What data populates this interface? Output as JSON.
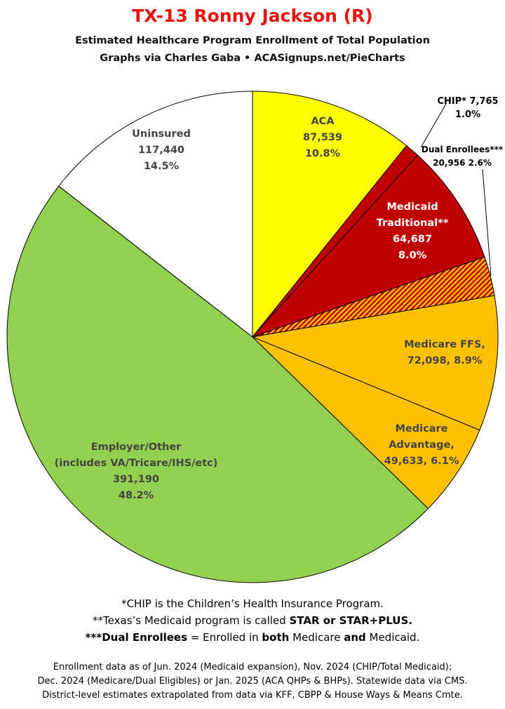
{
  "header": {
    "title": "TX-13 Ronny Jackson (R)",
    "subtitle1": "Estimated Healthcare Program Enrollment of Total Population",
    "subtitle2": "Graphs via Charles Gaba  •  ACASignups.net/PieCharts"
  },
  "chart_data": {
    "type": "pie",
    "title": "TX-13 Ronny Jackson (R)",
    "start": "12 o'clock",
    "direction": "clockwise",
    "slices": [
      {
        "name": "ACA",
        "value": 87539,
        "percent": 10.8,
        "color": "#ffff00",
        "label_lines": [
          "ACA",
          "87,539",
          "10.8%"
        ],
        "label_color": "#444444"
      },
      {
        "name": "CHIP*",
        "value": 7765,
        "percent": 1.0,
        "color": "#c00000",
        "label_lines": [
          "CHIP* 7,765",
          "1.0%"
        ],
        "label_color": "#000000"
      },
      {
        "name": "Medicaid Traditional**",
        "value": 64687,
        "percent": 8.0,
        "color": "#c00000",
        "label_lines": [
          "Medicaid",
          "Traditional**",
          "64,687",
          "8.0%"
        ],
        "label_color": "#ffffff"
      },
      {
        "name": "Dual Enrollees***",
        "value": 20956,
        "percent": 2.6,
        "color": "#c00000",
        "pattern": "hatched",
        "label_lines": [
          "Dual Enrollees***",
          "20,956 2.6%"
        ],
        "label_color": "#000000"
      },
      {
        "name": "Medicare FFS",
        "value": 72098,
        "percent": 8.9,
        "color": "#ffc000",
        "label_lines": [
          "Medicare FFS,",
          "72,098, 8.9%"
        ],
        "label_color": "#444444"
      },
      {
        "name": "Medicare Advantage",
        "value": 49633,
        "percent": 6.1,
        "color": "#ffc000",
        "label_lines": [
          "Medicare",
          "Advantage,",
          "49,633, 6.1%"
        ],
        "label_color": "#444444"
      },
      {
        "name": "Employer/Other (includes VA/Tricare/IHS/etc)",
        "value": 391190,
        "percent": 48.2,
        "color": "#92d050",
        "label_lines": [
          "Employer/Other",
          "(includes VA/Tricare/IHS/etc)",
          "391,190",
          "48.2%"
        ],
        "label_color": "#444444"
      },
      {
        "name": "Uninsured",
        "value": 117440,
        "percent": 14.5,
        "color": "#ffffff",
        "label_lines": [
          "Uninsured",
          "117,440",
          "14.5%"
        ],
        "label_color": "#444444"
      }
    ]
  },
  "footnotes": {
    "chip": "*CHIP is the Children’s Health Insurance Program.",
    "medicaid_pre": "**Texas’s Medicaid program is called ",
    "medicaid_bold": "STAR or STAR+PLUS.",
    "dual_bold1": "***Dual Enrollees",
    "dual_mid": " = Enrolled in ",
    "dual_bold2": "both",
    "dual_mid2": " Medicare ",
    "dual_bold3": "and",
    "dual_end": " Medicaid."
  },
  "source": {
    "line1": "Enrollment data as of Jun. 2024 (Medicaid expansion), Nov. 2024 (CHIP/Total Medicaid);",
    "line2": "Dec. 2024 (Medicare/Dual Eligibles) or Jan. 2025 (ACA QHPs & BHPs). Statewide data via CMS.",
    "line3": "District-level estimates extrapolated from data via KFF, CBPP & House Ways & Means Cmte."
  }
}
